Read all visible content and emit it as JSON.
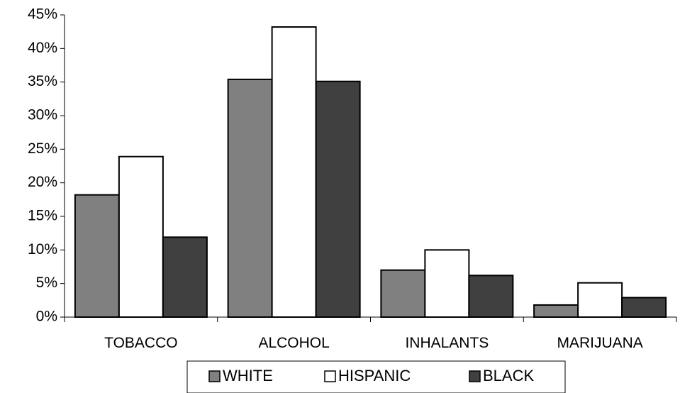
{
  "chart_data": {
    "type": "bar",
    "title": "",
    "xlabel": "",
    "ylabel": "",
    "categories": [
      "TOBACCO",
      "ALCOHOL",
      "INHALANTS",
      "MARIJUANA"
    ],
    "series": [
      {
        "name": "WHITE",
        "values": [
          18.2,
          35.4,
          7.0,
          1.8
        ],
        "color": "#808080"
      },
      {
        "name": "HISPANIC",
        "values": [
          23.9,
          43.2,
          10.0,
          5.1
        ],
        "color": "#ffffff"
      },
      {
        "name": "BLACK",
        "values": [
          11.9,
          35.1,
          6.2,
          2.9
        ],
        "color": "#404040"
      }
    ],
    "ylim": [
      0,
      45
    ],
    "yticks": [
      "0%",
      "5%",
      "10%",
      "15%",
      "20%",
      "25%",
      "30%",
      "35%",
      "40%",
      "45%"
    ],
    "ytick_values": [
      0,
      5,
      10,
      15,
      20,
      25,
      30,
      35,
      40,
      45
    ],
    "grid": false,
    "legend_position": "bottom"
  }
}
